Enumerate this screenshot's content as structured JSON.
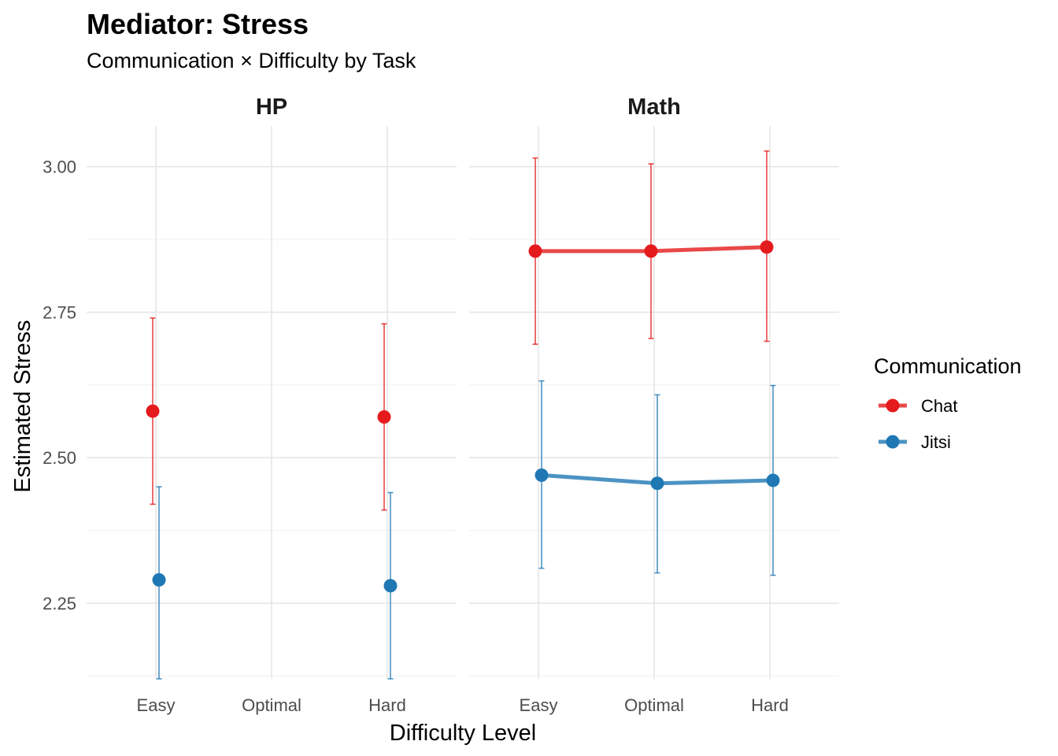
{
  "chart_data": {
    "type": "line",
    "title": "Mediator: Stress",
    "subtitle": "Communication × Difficulty by Task",
    "xlabel": "Difficulty Level",
    "ylabel": "Estimated Stress",
    "categories": [
      "Easy",
      "Optimal",
      "Hard"
    ],
    "ylim": [
      2.12,
      3.07
    ],
    "yticks": [
      2.25,
      2.5,
      2.75,
      3.0
    ],
    "ytick_labels": [
      "2.25",
      "2.50",
      "2.75",
      "3.00"
    ],
    "grid": true,
    "legend": {
      "title": "Communication",
      "position": "right",
      "entries": [
        {
          "label": "Chat",
          "color": "#E41A1C"
        },
        {
          "label": "Jitsi",
          "color": "#1F78B4"
        }
      ]
    },
    "panels": [
      {
        "label": "HP",
        "series": [
          {
            "name": "Chat",
            "color": "#E41A1C",
            "line": false,
            "points": [
              {
                "x": "Easy",
                "y": 2.58,
                "lower": 2.42,
                "upper": 2.74
              },
              {
                "x": "Hard",
                "y": 2.57,
                "lower": 2.41,
                "upper": 2.73
              }
            ]
          },
          {
            "name": "Jitsi",
            "color": "#1F78B4",
            "line": false,
            "points": [
              {
                "x": "Easy",
                "y": 2.29,
                "lower": 2.12,
                "upper": 2.45
              },
              {
                "x": "Hard",
                "y": 2.28,
                "lower": 2.12,
                "upper": 2.44
              }
            ]
          }
        ]
      },
      {
        "label": "Math",
        "series": [
          {
            "name": "Chat",
            "color": "#E41A1C",
            "line": true,
            "points": [
              {
                "x": "Easy",
                "y": 2.855,
                "lower": 2.695,
                "upper": 3.015
              },
              {
                "x": "Optimal",
                "y": 2.855,
                "lower": 2.705,
                "upper": 3.005
              },
              {
                "x": "Hard",
                "y": 2.862,
                "lower": 2.7,
                "upper": 3.027
              }
            ]
          },
          {
            "name": "Jitsi",
            "color": "#1F78B4",
            "line": true,
            "points": [
              {
                "x": "Easy",
                "y": 2.47,
                "lower": 2.31,
                "upper": 2.632
              },
              {
                "x": "Optimal",
                "y": 2.456,
                "lower": 2.302,
                "upper": 2.608
              },
              {
                "x": "Hard",
                "y": 2.461,
                "lower": 2.298,
                "upper": 2.624
              }
            ]
          }
        ]
      }
    ]
  }
}
